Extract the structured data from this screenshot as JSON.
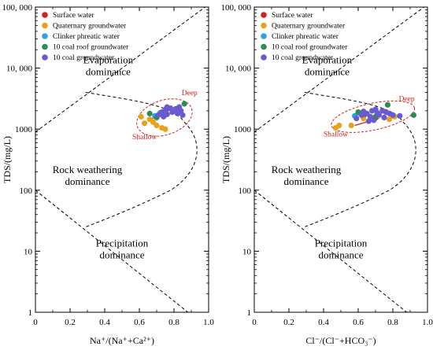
{
  "chart_data": [
    {
      "type": "scatter",
      "panel": "left",
      "xlabel": "Na⁺/(Na⁺+Ca²⁺)",
      "ylabel": "TDS/(mg/L)",
      "xlim": [
        0,
        1
      ],
      "ylim": [
        1,
        100000
      ],
      "yscale": "log",
      "x_ticks": [
        "0",
        "0.2",
        "0.4",
        "0.6",
        "0.8",
        "1.0"
      ],
      "y_ticks": [
        "1",
        "10",
        "100",
        "1000",
        "10, 000",
        "100, 000"
      ],
      "legend_position": "top-left",
      "regions": [
        "Evaporation dominance",
        "Rock weathering dominance",
        "Precipitation dominance"
      ],
      "annotations": [
        "Deep",
        "Shallow"
      ],
      "series": [
        {
          "name": "Surface water",
          "color": "#d42020",
          "points": []
        },
        {
          "name": "Quaternary groundwater",
          "color": "#e9a11c",
          "points": [
            [
              0.61,
              1600
            ],
            [
              0.63,
              1250
            ],
            [
              0.66,
              1450
            ],
            [
              0.7,
              1150
            ],
            [
              0.73,
              1050
            ],
            [
              0.75,
              1000
            ],
            [
              0.68,
              1300
            ]
          ]
        },
        {
          "name": "Clinker phreatic water",
          "color": "#2aa3e0",
          "points": [
            [
              0.69,
              1650
            ],
            [
              0.72,
              1850
            ]
          ]
        },
        {
          "name": "10 coal roof groundwater",
          "color": "#2e8b57",
          "points": [
            [
              0.66,
              1800
            ],
            [
              0.7,
              1550
            ],
            [
              0.74,
              1700
            ],
            [
              0.86,
              2600
            ]
          ]
        },
        {
          "name": "10 coal  groundwater",
          "color": "#6a5acd",
          "points": [
            [
              0.71,
              1700
            ],
            [
              0.73,
              1900
            ],
            [
              0.75,
              2100
            ],
            [
              0.76,
              1750
            ],
            [
              0.78,
              2200
            ],
            [
              0.79,
              1900
            ],
            [
              0.8,
              2050
            ],
            [
              0.82,
              1800
            ],
            [
              0.83,
              2300
            ],
            [
              0.84,
              2000
            ],
            [
              0.85,
              1700
            ],
            [
              0.76,
              2300
            ],
            [
              0.74,
              1600
            ],
            [
              0.81,
              2150
            ]
          ]
        }
      ]
    },
    {
      "type": "scatter",
      "panel": "right",
      "xlabel": "Cl⁻/(Cl⁻+HCO₃⁻)",
      "ylabel": "TDS/(mg/L)",
      "xlim": [
        0,
        1
      ],
      "ylim": [
        1,
        100000
      ],
      "yscale": "log",
      "x_ticks": [
        "0",
        "0.2",
        "0.4",
        "0.6",
        "0.8",
        "1.0"
      ],
      "y_ticks": [
        "1",
        "10",
        "100",
        "1000",
        "10, 000",
        "100, 000"
      ],
      "legend_position": "top-left",
      "regions": [
        "Evaporation dominance",
        "Rock weathering dominance",
        "Precipitation dominance"
      ],
      "annotations": [
        "Deep",
        "Shallow"
      ],
      "series": [
        {
          "name": "Surface water",
          "color": "#d42020",
          "points": []
        },
        {
          "name": "Quaternary groundwater",
          "color": "#e9a11c",
          "points": [
            [
              0.47,
              1050
            ],
            [
              0.49,
              1150
            ],
            [
              0.56,
              1150
            ],
            [
              0.63,
              1500
            ],
            [
              0.78,
              1450
            ],
            [
              0.81,
              1600
            ]
          ]
        },
        {
          "name": "Clinker phreatic water",
          "color": "#2aa3e0",
          "points": [
            [
              0.58,
              1650
            ],
            [
              0.61,
              1800
            ]
          ]
        },
        {
          "name": "10 coal roof groundwater",
          "color": "#2e8b57",
          "points": [
            [
              0.6,
              1900
            ],
            [
              0.64,
              1750
            ],
            [
              0.7,
              1600
            ],
            [
              0.77,
              2500
            ],
            [
              0.92,
              1700
            ]
          ]
        },
        {
          "name": "10 coal  groundwater",
          "color": "#6a5acd",
          "points": [
            [
              0.59,
              1500
            ],
            [
              0.62,
              1700
            ],
            [
              0.63,
              1950
            ],
            [
              0.65,
              1800
            ],
            [
              0.67,
              1600
            ],
            [
              0.68,
              2000
            ],
            [
              0.69,
              1400
            ],
            [
              0.71,
              1850
            ],
            [
              0.72,
              1700
            ],
            [
              0.74,
              2000
            ],
            [
              0.75,
              1550
            ],
            [
              0.76,
              1900
            ],
            [
              0.78,
              1800
            ],
            [
              0.8,
              1700
            ],
            [
              0.84,
              1650
            ],
            [
              0.66,
              1350
            ],
            [
              0.7,
              2100
            ]
          ]
        }
      ]
    }
  ]
}
